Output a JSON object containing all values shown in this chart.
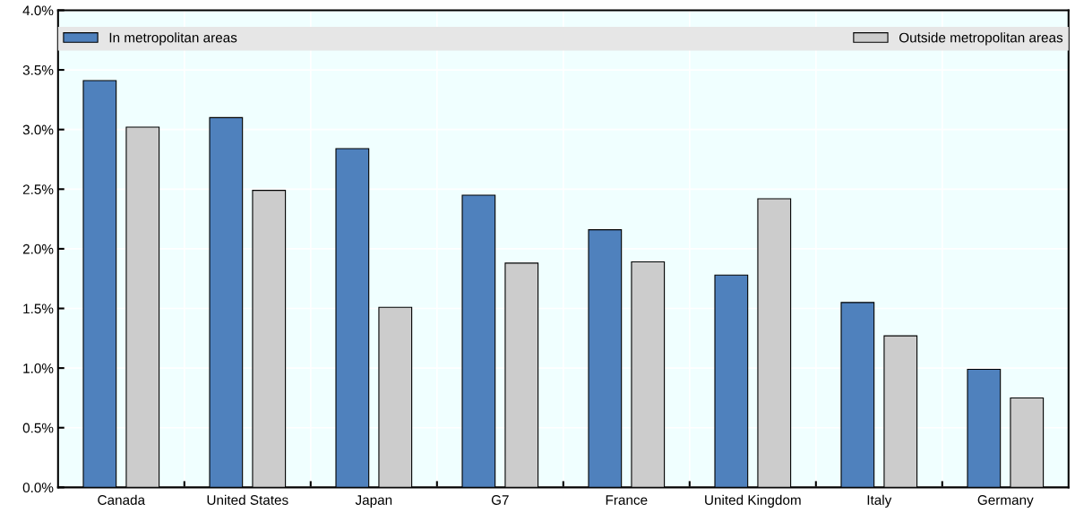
{
  "chart_data": {
    "type": "bar",
    "categories": [
      "Canada",
      "United States",
      "Japan",
      "G7",
      "France",
      "United Kingdom",
      "Italy",
      "Germany"
    ],
    "series": [
      {
        "name": "In metropolitan areas",
        "color": "#4f81bd",
        "values": [
          3.41,
          3.1,
          2.84,
          2.45,
          2.16,
          1.78,
          1.55,
          0.99
        ]
      },
      {
        "name": "Outside metropolitan areas",
        "color": "#cccccc",
        "values": [
          3.02,
          2.49,
          1.51,
          1.88,
          1.89,
          2.42,
          1.27,
          0.75
        ]
      }
    ],
    "ylim": [
      0,
      4
    ],
    "yticks": [
      {
        "value": 0,
        "label": "0.0%"
      },
      {
        "value": 0.5,
        "label": "0.5%"
      },
      {
        "value": 1,
        "label": "1.0%"
      },
      {
        "value": 1.5,
        "label": "1.5%"
      },
      {
        "value": 2,
        "label": "2.0%"
      },
      {
        "value": 2.5,
        "label": "2.5%"
      },
      {
        "value": 3,
        "label": "3.0%"
      },
      {
        "value": 3.5,
        "label": "3.5%"
      },
      {
        "value": 4,
        "label": "4.0%"
      }
    ],
    "grid": true,
    "legend": "top"
  }
}
